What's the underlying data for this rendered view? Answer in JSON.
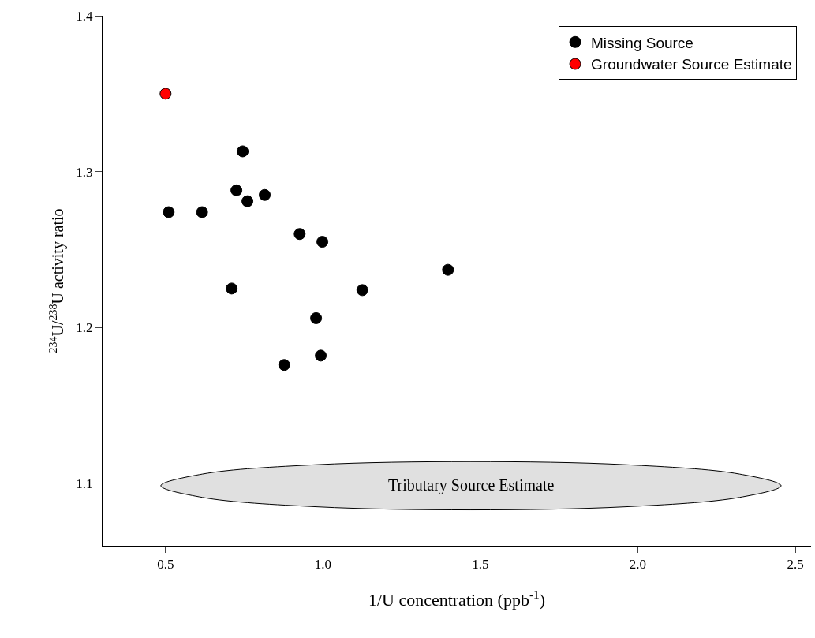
{
  "chart_data": {
    "type": "scatter",
    "xlabel": "1/U concentration (ppb$^{-1}$)",
    "ylabel": "$^{234}$U/$^{238}$U activity ratio",
    "xlim": [
      0.3,
      2.55
    ],
    "xticks": [
      {
        "value": 0.5,
        "label": "0.5"
      },
      {
        "value": 1,
        "label": "1.0"
      },
      {
        "value": 1.5,
        "label": "1.5"
      },
      {
        "value": 2,
        "label": "2.0"
      },
      {
        "value": 2.5,
        "label": "2.5"
      }
    ],
    "ylim": [
      1.06,
      1.4
    ],
    "yticks": [
      {
        "value": 1.1,
        "label": "1.1"
      },
      {
        "value": 1.2,
        "label": "1.2"
      },
      {
        "value": 1.3,
        "label": "1.3"
      },
      {
        "value": 1.4,
        "label": "1.4"
      }
    ],
    "grid": false,
    "legend": "top right",
    "series": [
      {
        "name": "Missing Source",
        "color": "#000000",
        "marker": "circle",
        "x": [
          0.51,
          0.616,
          0.71,
          0.725,
          0.745,
          0.76,
          0.815,
          0.926,
          0.998,
          0.978,
          0.993,
          0.877,
          1.125,
          1.397
        ],
        "values": [
          1.274,
          1.274,
          1.225,
          1.288,
          1.313,
          1.281,
          1.285,
          1.26,
          1.255,
          1.206,
          1.182,
          1.176,
          1.224,
          1.237
        ]
      },
      {
        "name": "Groundwater Source Estimate",
        "color": "#ff0000",
        "marker": "circle",
        "x": [
          0.5
        ],
        "values": [
          1.35
        ]
      },
      {
        "name": "Tributary Source Estimate",
        "type": "area",
        "color": "#e0e0e0",
        "marker": "none",
        "x": [
          2.455,
          2.323,
          1.963,
          1.47,
          0.978,
          0.617,
          0.485,
          0.617,
          0.978,
          1.47,
          1.963,
          2.323,
          2.455
        ],
        "values": [
          1.0985,
          1.106,
          1.112,
          1.114,
          1.112,
          1.106,
          1.0985,
          1.091,
          1.085,
          1.083,
          1.085,
          1.091,
          1.0985
        ]
      }
    ],
    "tick_labels": true
  }
}
